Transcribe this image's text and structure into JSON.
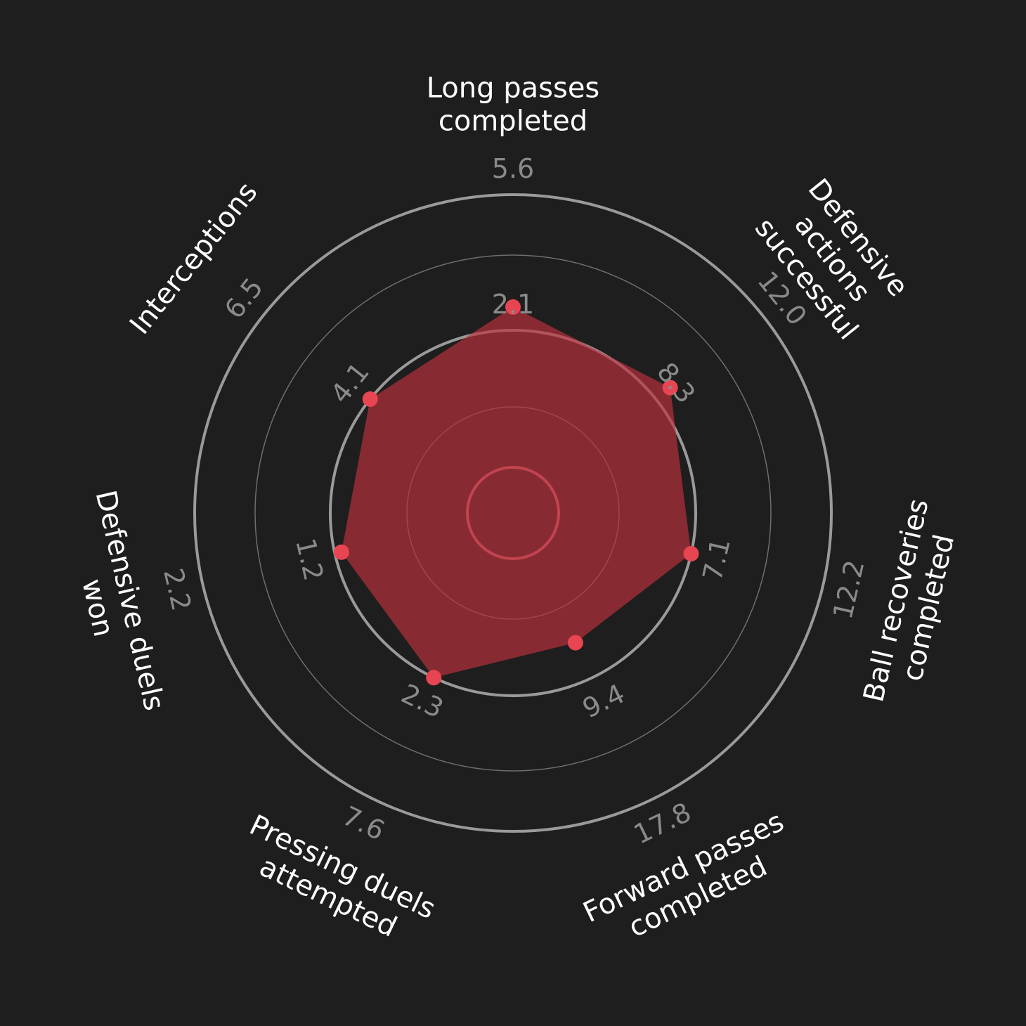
{
  "chart_data": {
    "type": "radar",
    "background": "#1e1e1e",
    "colors": {
      "fill": "#c0313c",
      "marker": "#e84552",
      "ring": "#9a9a9a",
      "ring_thin": "#6e6e6e",
      "param_text": "#ffffff",
      "range_text": "#8a8a8a"
    },
    "params": [
      {
        "lines": [
          "Long passes",
          "completed"
        ],
        "min": "2.1",
        "max": "5.6",
        "value": 2.7
      },
      {
        "lines": [
          "Defensive",
          "actions",
          "successful"
        ],
        "min": "8.3",
        "max": "12.0",
        "value": 8.8
      },
      {
        "lines": [
          "Ball recoveries",
          "completed"
        ],
        "min": "7.1",
        "max": "12.2",
        "value": 7.1
      },
      {
        "lines": [
          "Forward passes",
          "completed"
        ],
        "min": "9.4",
        "max": "17.8",
        "value": 7.0
      },
      {
        "lines": [
          "Pressing duels",
          "attempted"
        ],
        "min": "2.3",
        "max": "7.6",
        "value": 2.3
      },
      {
        "lines": [
          "Defensive duels",
          "won"
        ],
        "min": "1.2",
        "max": "2.2",
        "value": 1.15
      },
      {
        "lines": [
          "Interceptions"
        ],
        "min": "4.1",
        "max": "6.5",
        "value": 4.1
      }
    ]
  }
}
